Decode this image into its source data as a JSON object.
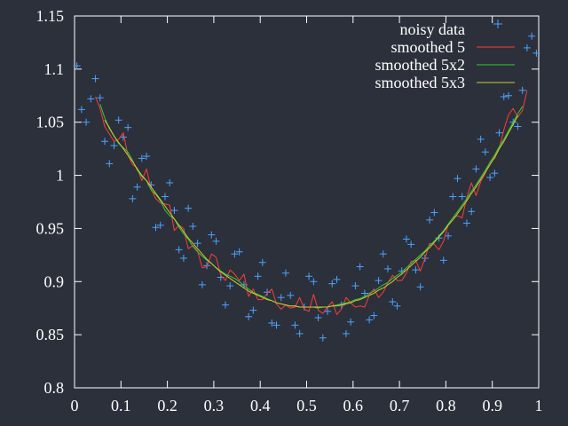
{
  "chart_data": {
    "type": "line",
    "title": "",
    "xlabel": "",
    "ylabel": "",
    "xlim": [
      0,
      1
    ],
    "ylim": [
      0.8,
      1.15
    ],
    "grid": false,
    "legend_position": "top-right",
    "x_ticks": [
      "0",
      "0.1",
      "0.2",
      "0.3",
      "0.4",
      "0.5",
      "0.6",
      "0.7",
      "0.8",
      "0.9",
      "1"
    ],
    "y_ticks": [
      "0.8",
      "0.85",
      "0.9",
      "0.95",
      "1",
      "1.05",
      "1.1",
      "1.15"
    ],
    "colors": {
      "background": "#2b303b",
      "frame": "#ffffff",
      "noisy": "#4da3ff",
      "smoothed5": "#ff3b3b",
      "smoothed5x2": "#33cc33",
      "smoothed5x3": "#cccc33"
    },
    "series": [
      {
        "name": "noisy data",
        "style": "points",
        "marker": "+",
        "x": [
          0.005,
          0.015,
          0.025,
          0.035,
          0.045,
          0.055,
          0.065,
          0.075,
          0.085,
          0.095,
          0.105,
          0.115,
          0.125,
          0.135,
          0.145,
          0.155,
          0.165,
          0.175,
          0.185,
          0.195,
          0.205,
          0.215,
          0.225,
          0.235,
          0.245,
          0.255,
          0.265,
          0.275,
          0.285,
          0.295,
          0.305,
          0.315,
          0.325,
          0.335,
          0.345,
          0.355,
          0.365,
          0.375,
          0.385,
          0.395,
          0.405,
          0.415,
          0.425,
          0.435,
          0.445,
          0.455,
          0.465,
          0.475,
          0.485,
          0.495,
          0.505,
          0.515,
          0.525,
          0.535,
          0.545,
          0.555,
          0.565,
          0.575,
          0.585,
          0.595,
          0.605,
          0.615,
          0.625,
          0.635,
          0.645,
          0.655,
          0.665,
          0.675,
          0.685,
          0.695,
          0.705,
          0.715,
          0.725,
          0.735,
          0.745,
          0.755,
          0.765,
          0.775,
          0.785,
          0.795,
          0.805,
          0.815,
          0.825,
          0.835,
          0.845,
          0.855,
          0.865,
          0.875,
          0.885,
          0.895,
          0.905,
          0.915,
          0.925,
          0.935,
          0.945,
          0.955,
          0.965,
          0.975,
          0.985,
          0.995
        ],
        "y": [
          1.103,
          1.062,
          1.05,
          1.072,
          1.091,
          1.073,
          1.032,
          1.011,
          1.028,
          1.052,
          1.036,
          1.045,
          0.978,
          0.989,
          1.016,
          1.018,
          0.991,
          0.951,
          0.953,
          0.98,
          0.993,
          0.967,
          0.93,
          0.922,
          0.969,
          0.952,
          0.936,
          0.897,
          0.915,
          0.944,
          0.938,
          0.904,
          0.878,
          0.896,
          0.926,
          0.928,
          0.897,
          0.867,
          0.873,
          0.905,
          0.918,
          0.89,
          0.861,
          0.859,
          0.885,
          0.908,
          0.887,
          0.859,
          0.851,
          0.876,
          0.905,
          0.9,
          0.866,
          0.847,
          0.872,
          0.898,
          0.902,
          0.878,
          0.851,
          0.862,
          0.896,
          0.914,
          0.889,
          0.864,
          0.868,
          0.901,
          0.926,
          0.912,
          0.881,
          0.877,
          0.91,
          0.94,
          0.935,
          0.911,
          0.895,
          0.922,
          0.958,
          0.965,
          0.941,
          0.92,
          0.943,
          0.98,
          0.997,
          0.98,
          0.955,
          0.966,
          1.006,
          1.034,
          1.022,
          0.998,
          1.002,
          1.04,
          1.074,
          1.075,
          1.05,
          1.046,
          1.08,
          1.12,
          1.131,
          1.115
        ]
      },
      {
        "name": "smoothed 5",
        "style": "line",
        "x": [
          0.045,
          0.055,
          0.065,
          0.075,
          0.085,
          0.095,
          0.105,
          0.115,
          0.125,
          0.135,
          0.145,
          0.155,
          0.165,
          0.175,
          0.185,
          0.195,
          0.205,
          0.215,
          0.225,
          0.235,
          0.245,
          0.255,
          0.265,
          0.275,
          0.285,
          0.295,
          0.305,
          0.315,
          0.325,
          0.335,
          0.345,
          0.355,
          0.365,
          0.375,
          0.385,
          0.395,
          0.405,
          0.415,
          0.425,
          0.435,
          0.445,
          0.455,
          0.465,
          0.475,
          0.485,
          0.495,
          0.505,
          0.515,
          0.525,
          0.535,
          0.545,
          0.555,
          0.565,
          0.575,
          0.585,
          0.595,
          0.605,
          0.615,
          0.625,
          0.635,
          0.645,
          0.655,
          0.665,
          0.675,
          0.685,
          0.695,
          0.705,
          0.715,
          0.725,
          0.735,
          0.745,
          0.755,
          0.765,
          0.775,
          0.785,
          0.795,
          0.805,
          0.815,
          0.825,
          0.835,
          0.845,
          0.855,
          0.865,
          0.875,
          0.885,
          0.895,
          0.905,
          0.915,
          0.925,
          0.935,
          0.945,
          0.955,
          0.965,
          0.975
        ],
        "y": [
          1.074,
          1.063,
          1.046,
          1.039,
          1.032,
          1.034,
          1.04,
          1.019,
          1.01,
          1.007,
          0.995,
          1.006,
          0.987,
          0.978,
          0.974,
          0.973,
          0.972,
          0.948,
          0.953,
          0.95,
          0.931,
          0.934,
          0.929,
          0.913,
          0.914,
          0.926,
          0.923,
          0.906,
          0.901,
          0.911,
          0.907,
          0.901,
          0.907,
          0.886,
          0.893,
          0.883,
          0.883,
          0.889,
          0.893,
          0.879,
          0.874,
          0.878,
          0.875,
          0.876,
          0.885,
          0.874,
          0.872,
          0.888,
          0.873,
          0.87,
          0.876,
          0.881,
          0.869,
          0.874,
          0.885,
          0.88,
          0.876,
          0.877,
          0.876,
          0.887,
          0.893,
          0.885,
          0.89,
          0.899,
          0.906,
          0.901,
          0.901,
          0.908,
          0.919,
          0.92,
          0.91,
          0.922,
          0.936,
          0.935,
          0.93,
          0.938,
          0.954,
          0.96,
          0.962,
          0.96,
          0.979,
          0.993,
          0.981,
          0.994,
          1.002,
          1.013,
          1.016,
          1.025,
          1.043,
          1.057,
          1.063,
          1.055,
          1.061,
          1.08
        ]
      },
      {
        "name": "smoothed 5x2",
        "style": "line",
        "x": [
          0.055,
          0.065,
          0.075,
          0.085,
          0.095,
          0.105,
          0.115,
          0.125,
          0.135,
          0.145,
          0.155,
          0.165,
          0.175,
          0.185,
          0.195,
          0.205,
          0.215,
          0.225,
          0.235,
          0.245,
          0.255,
          0.265,
          0.275,
          0.285,
          0.295,
          0.305,
          0.315,
          0.325,
          0.335,
          0.345,
          0.355,
          0.365,
          0.375,
          0.385,
          0.395,
          0.405,
          0.415,
          0.425,
          0.435,
          0.445,
          0.455,
          0.465,
          0.475,
          0.485,
          0.495,
          0.505,
          0.515,
          0.525,
          0.535,
          0.545,
          0.555,
          0.565,
          0.575,
          0.585,
          0.595,
          0.605,
          0.615,
          0.625,
          0.635,
          0.645,
          0.655,
          0.665,
          0.675,
          0.685,
          0.695,
          0.705,
          0.715,
          0.725,
          0.735,
          0.745,
          0.755,
          0.765,
          0.775,
          0.785,
          0.795,
          0.805,
          0.815,
          0.825,
          0.835,
          0.845,
          0.855,
          0.865,
          0.875,
          0.885,
          0.895,
          0.905,
          0.915,
          0.925,
          0.935,
          0.945,
          0.955,
          0.965
        ],
        "y": [
          1.067,
          1.054,
          1.044,
          1.037,
          1.03,
          1.026,
          1.022,
          1.014,
          1.005,
          0.999,
          0.995,
          0.986,
          0.982,
          0.976,
          0.967,
          0.962,
          0.959,
          0.951,
          0.945,
          0.94,
          0.933,
          0.928,
          0.924,
          0.92,
          0.917,
          0.913,
          0.91,
          0.907,
          0.905,
          0.903,
          0.9,
          0.896,
          0.893,
          0.89,
          0.888,
          0.886,
          0.884,
          0.882,
          0.88,
          0.879,
          0.878,
          0.877,
          0.877,
          0.876,
          0.876,
          0.876,
          0.876,
          0.875,
          0.876,
          0.876,
          0.877,
          0.878,
          0.879,
          0.88,
          0.881,
          0.883,
          0.884,
          0.886,
          0.889,
          0.891,
          0.894,
          0.897,
          0.899,
          0.903,
          0.906,
          0.909,
          0.913,
          0.917,
          0.921,
          0.925,
          0.929,
          0.934,
          0.938,
          0.943,
          0.948,
          0.954,
          0.96,
          0.966,
          0.972,
          0.978,
          0.985,
          0.991,
          0.998,
          1.005,
          1.012,
          1.019,
          1.027,
          1.034,
          1.042,
          1.05,
          1.058,
          1.065
        ]
      },
      {
        "name": "smoothed 5x3",
        "style": "line",
        "x": [
          0.065,
          0.075,
          0.085,
          0.095,
          0.105,
          0.115,
          0.125,
          0.135,
          0.145,
          0.155,
          0.165,
          0.175,
          0.185,
          0.195,
          0.205,
          0.215,
          0.225,
          0.235,
          0.245,
          0.255,
          0.265,
          0.275,
          0.285,
          0.295,
          0.305,
          0.315,
          0.325,
          0.335,
          0.345,
          0.355,
          0.365,
          0.375,
          0.385,
          0.395,
          0.405,
          0.415,
          0.425,
          0.435,
          0.445,
          0.455,
          0.465,
          0.475,
          0.485,
          0.495,
          0.505,
          0.515,
          0.525,
          0.535,
          0.545,
          0.555,
          0.565,
          0.575,
          0.585,
          0.595,
          0.605,
          0.615,
          0.625,
          0.635,
          0.645,
          0.655,
          0.665,
          0.675,
          0.685,
          0.695,
          0.705,
          0.715,
          0.725,
          0.735,
          0.745,
          0.755,
          0.765,
          0.775,
          0.785,
          0.795,
          0.805,
          0.815,
          0.825,
          0.835,
          0.845,
          0.855,
          0.865,
          0.875,
          0.885,
          0.895,
          0.905,
          0.915,
          0.925,
          0.935,
          0.945,
          0.955
        ],
        "y": [
          1.052,
          1.045,
          1.037,
          1.031,
          1.025,
          1.019,
          1.013,
          1.006,
          1.0,
          0.995,
          0.989,
          0.983,
          0.977,
          0.971,
          0.965,
          0.959,
          0.953,
          0.947,
          0.941,
          0.936,
          0.931,
          0.926,
          0.921,
          0.917,
          0.913,
          0.909,
          0.906,
          0.903,
          0.9,
          0.897,
          0.894,
          0.891,
          0.889,
          0.887,
          0.885,
          0.883,
          0.882,
          0.88,
          0.879,
          0.878,
          0.877,
          0.877,
          0.876,
          0.876,
          0.876,
          0.876,
          0.876,
          0.876,
          0.876,
          0.877,
          0.877,
          0.878,
          0.879,
          0.88,
          0.882,
          0.883,
          0.885,
          0.887,
          0.889,
          0.892,
          0.894,
          0.897,
          0.9,
          0.904,
          0.907,
          0.911,
          0.915,
          0.919,
          0.923,
          0.928,
          0.932,
          0.937,
          0.942,
          0.947,
          0.953,
          0.958,
          0.964,
          0.97,
          0.976,
          0.983,
          0.989,
          0.996,
          1.003,
          1.01,
          1.017,
          1.025,
          1.032,
          1.04,
          1.048,
          1.056
        ]
      }
    ]
  },
  "legend": {
    "items": [
      {
        "label": "noisy data"
      },
      {
        "label": "smoothed 5"
      },
      {
        "label": "smoothed 5x2"
      },
      {
        "label": "smoothed 5x3"
      }
    ]
  }
}
